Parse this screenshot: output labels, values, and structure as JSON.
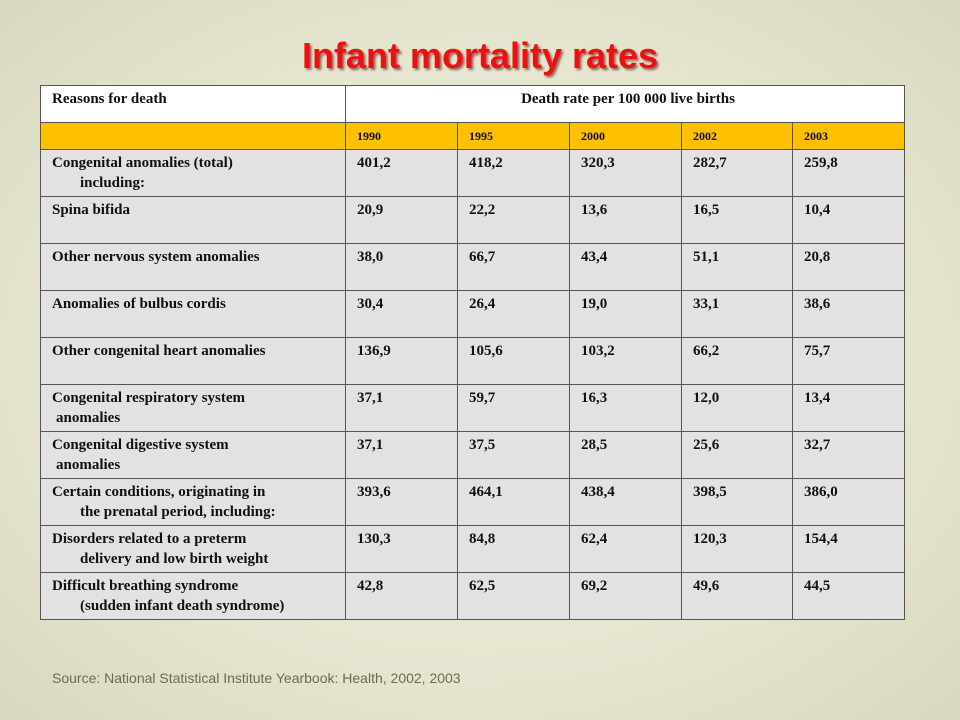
{
  "title": "Infant mortality rates",
  "source": "Source: National Statistical Institute Yearbook: Health, 2002, 2003",
  "table": {
    "header_reason": "Reasons for death",
    "header_rate": "Death rate per 100 000 live births",
    "years": [
      "1990",
      "1995",
      "2000",
      "2002",
      "2003"
    ],
    "rows": [
      {
        "label_line1": "Congenital anomalies (total)",
        "label_line2": "including:",
        "indent": "large",
        "values": [
          "401,2",
          "418,2",
          "320,3",
          "282,7",
          "259,8"
        ]
      },
      {
        "label_line1": "Spina bifida",
        "label_line2": "",
        "indent": "none",
        "values": [
          "20,9",
          "22,2",
          "13,6",
          "16,5",
          "10,4"
        ]
      },
      {
        "label_line1": "Other nervous system anomalies",
        "label_line2": "",
        "indent": "none",
        "values": [
          "38,0",
          "66,7",
          "43,4",
          "51,1",
          "20,8"
        ]
      },
      {
        "label_line1": "Anomalies of bulbus cordis",
        "label_line2": "",
        "indent": "none",
        "values": [
          "30,4",
          "26,4",
          "19,0",
          "33,1",
          "38,6"
        ]
      },
      {
        "label_line1": "Other congenital heart anomalies",
        "label_line2": "",
        "indent": "none",
        "values": [
          "136,9",
          "105,6",
          "103,2",
          "66,2",
          "75,7"
        ]
      },
      {
        "label_line1": "Congenital respiratory system",
        "label_line2": "anomalies",
        "indent": "small",
        "values": [
          "37,1",
          "59,7",
          "16,3",
          "12,0",
          "13,4"
        ]
      },
      {
        "label_line1": "Congenital digestive system",
        "label_line2": "anomalies",
        "indent": "small",
        "values": [
          "37,1",
          "37,5",
          "28,5",
          "25,6",
          "32,7"
        ]
      },
      {
        "label_line1": "Certain conditions, originating in",
        "label_line2": "the prenatal period, including:",
        "indent": "large",
        "values": [
          "393,6",
          "464,1",
          "438,4",
          "398,5",
          "386,0"
        ]
      },
      {
        "label_line1": "Disorders related to a preterm",
        "label_line2": "delivery and low birth weight",
        "indent": "large",
        "values": [
          "130,3",
          "84,8",
          "62,4",
          "120,3",
          "154,4"
        ]
      },
      {
        "label_line1": "Difficult breathing syndrome",
        "label_line2": "(sudden infant death syndrome)",
        "indent": "large",
        "values": [
          "42,8",
          "62,5",
          "69,2",
          "49,6",
          "44,5"
        ]
      }
    ]
  },
  "colors": {
    "title": "#ee1010",
    "year_row": "#ffc000",
    "body_rows": "#e2e2e2",
    "background": "#e6e5d0"
  }
}
